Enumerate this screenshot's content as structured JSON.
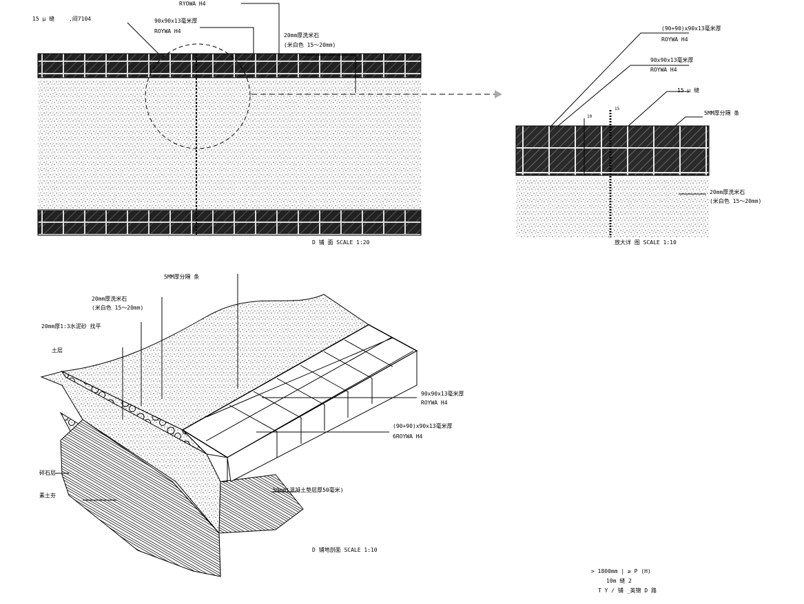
{
  "plan": {
    "gap_label": "15 μ 缝",
    "gap_note": ",间7104",
    "top_label_1": "RYOWA  H4",
    "tile_label": "90x90x13毫米厚",
    "tile_brand": "ROYWA  H4",
    "stone_label": "20mm厚洗米石",
    "stone_color": "(米白色   15～20mm)",
    "caption": "D  铺  面     SCALE 1:20"
  },
  "detail": {
    "tile_label_1": "(90+90)x90x13毫米厚",
    "tile_brand_1": "ROYWA   H4",
    "tile_label_2": "90x90x13毫米厚",
    "tile_brand_2": "ROYWA   H4",
    "gap_label": "15 μ 缝",
    "divider_label": "5MM厚分隔 条",
    "stone_label": "20mm厚洗米石",
    "stone_color": "(米白色   15～20mm)",
    "dim_1": "10",
    "dim_2": "15",
    "caption": "放大详 图     SCALE 1:10"
  },
  "perspective": {
    "divider_label": "5MM厚分隔 条",
    "stone_label": "20mm厚洗米石",
    "stone_color": "(米白色   15～20mm)",
    "screed_label": "20mm厚1:3水泥砂 找平",
    "soil_label": "土层",
    "tile_label_1": "90x90x13毫米厚",
    "tile_brand_1": "ROYWA    H4",
    "tile_label_2": "(90+90)x90x13毫米厚",
    "tile_brand_2": "6ROYWA    H4",
    "gravel_label": "碎石层",
    "earth_label": "素土夯",
    "concrete_label": "50mm(混凝土垫层厚50毫米)",
    "caption": "D    铺地剖面    SCALE 1:10"
  },
  "notes": {
    "line_1": ">      1800mm  |      ≥  P  (H)",
    "line_2": "10m  缝     2",
    "line_3": "T  Y  / 铺   _英锦     D 路"
  }
}
